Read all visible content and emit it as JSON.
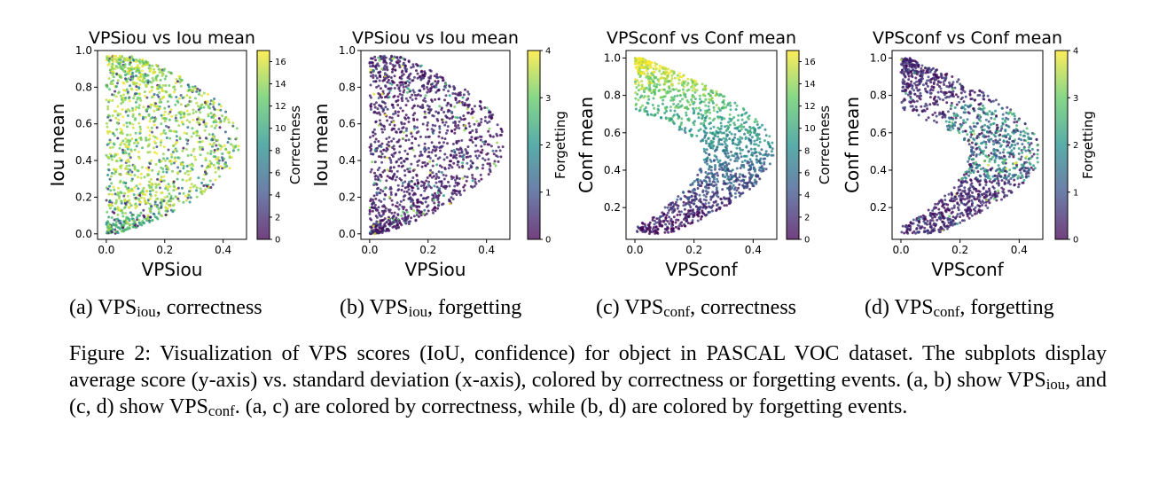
{
  "figure": {
    "caption": {
      "label": "Figure 2:",
      "p1": " Visualization of VPS scores (IoU, confidence) for object in PASCAL VOC dataset. The subplots display average score (y-axis) vs. standard deviation (x-axis), colored by correctness or forgetting events. (a, b) show VPS",
      "sub1": "iou",
      "p2": ", and (c, d) show VPS",
      "sub2": "conf",
      "p3": ". (a, c) are colored by correctness, while (b, d) are colored by forgetting events."
    },
    "subcaptions": [
      {
        "prefix": "(a) VPS",
        "sub": "iou",
        "suffix": ", correctness"
      },
      {
        "prefix": "(b) VPS",
        "sub": "iou",
        "suffix": ", forgetting"
      },
      {
        "prefix": "(c) VPS",
        "sub": "conf",
        "suffix": ", correctness"
      },
      {
        "prefix": "(d) VPS",
        "sub": "conf",
        "suffix": ", forgetting"
      }
    ]
  },
  "chart_data": [
    {
      "type": "scatter",
      "title": "VPSiou vs Iou mean",
      "xlabel": "VPSiou",
      "ylabel": "Iou mean",
      "xlim": [
        -0.03,
        0.48
      ],
      "ylim": [
        -0.03,
        1.0
      ],
      "xticks": [
        0.0,
        0.2,
        0.4
      ],
      "xtick_labels": [
        "0.0",
        "0.2",
        "0.4"
      ],
      "yticks": [
        0.0,
        0.2,
        0.4,
        0.6,
        0.8,
        1.0
      ],
      "ytick_labels": [
        "0.0",
        "0.2",
        "0.4",
        "0.6",
        "0.8",
        "1.0"
      ],
      "shape": "iou",
      "colorbar": {
        "label": "Correctness",
        "range": [
          0,
          17
        ],
        "ticks": [
          0,
          2,
          4,
          6,
          8,
          10,
          12,
          14,
          16
        ],
        "tick_labels": [
          "0",
          "2",
          "4",
          "6",
          "8",
          "10",
          "12",
          "14",
          "16"
        ]
      },
      "colormap": [
        "#440154",
        "#3b528b",
        "#21918c",
        "#5ec962",
        "#fde725"
      ],
      "color_mode": "high"
    },
    {
      "type": "scatter",
      "title": "VPSiou vs Iou mean",
      "xlabel": "VPSiou",
      "ylabel": "Iou mean",
      "xlim": [
        -0.03,
        0.48
      ],
      "ylim": [
        -0.03,
        1.0
      ],
      "xticks": [
        0.0,
        0.2,
        0.4
      ],
      "xtick_labels": [
        "0.0",
        "0.2",
        "0.4"
      ],
      "yticks": [
        0.0,
        0.2,
        0.4,
        0.6,
        0.8,
        1.0
      ],
      "ytick_labels": [
        "0.0",
        "0.2",
        "0.4",
        "0.6",
        "0.8",
        "1.0"
      ],
      "shape": "iou",
      "colorbar": {
        "label": "Forgetting",
        "range": [
          0,
          4
        ],
        "ticks": [
          0,
          1,
          2,
          3,
          4
        ],
        "tick_labels": [
          "0",
          "1",
          "2",
          "3",
          "4"
        ]
      },
      "colormap": [
        "#440154",
        "#3b528b",
        "#21918c",
        "#5ec962",
        "#fde725"
      ],
      "color_mode": "low"
    },
    {
      "type": "scatter",
      "title": "VPSconf vs Conf mean",
      "xlabel": "VPSconf",
      "ylabel": "Conf mean",
      "xlim": [
        -0.03,
        0.48
      ],
      "ylim": [
        0.03,
        1.04
      ],
      "xticks": [
        0.0,
        0.2,
        0.4
      ],
      "xtick_labels": [
        "0.0",
        "0.2",
        "0.4"
      ],
      "yticks": [
        0.2,
        0.4,
        0.6,
        0.8,
        1.0
      ],
      "ytick_labels": [
        "0.2",
        "0.4",
        "0.6",
        "0.8",
        "1.0"
      ],
      "shape": "conf",
      "colorbar": {
        "label": "Correctness",
        "range": [
          0,
          17
        ],
        "ticks": [
          0,
          2,
          4,
          6,
          8,
          10,
          12,
          14,
          16
        ],
        "tick_labels": [
          "0",
          "2",
          "4",
          "6",
          "8",
          "10",
          "12",
          "14",
          "16"
        ]
      },
      "colormap": [
        "#440154",
        "#3b528b",
        "#21918c",
        "#5ec962",
        "#fde725"
      ],
      "color_mode": "conf-correct"
    },
    {
      "type": "scatter",
      "title": "VPSconf vs Conf mean",
      "xlabel": "VPSconf",
      "ylabel": "Conf mean",
      "xlim": [
        -0.03,
        0.48
      ],
      "ylim": [
        0.03,
        1.04
      ],
      "xticks": [
        0.0,
        0.2,
        0.4
      ],
      "xtick_labels": [
        "0.0",
        "0.2",
        "0.4"
      ],
      "yticks": [
        0.2,
        0.4,
        0.6,
        0.8,
        1.0
      ],
      "ytick_labels": [
        "0.2",
        "0.4",
        "0.6",
        "0.8",
        "1.0"
      ],
      "shape": "conf",
      "colorbar": {
        "label": "Forgetting",
        "range": [
          0,
          4
        ],
        "ticks": [
          0,
          1,
          2,
          3,
          4
        ],
        "tick_labels": [
          "0",
          "1",
          "2",
          "3",
          "4"
        ]
      },
      "colormap": [
        "#440154",
        "#3b528b",
        "#21918c",
        "#5ec962",
        "#fde725"
      ],
      "color_mode": "conf-forget"
    }
  ]
}
